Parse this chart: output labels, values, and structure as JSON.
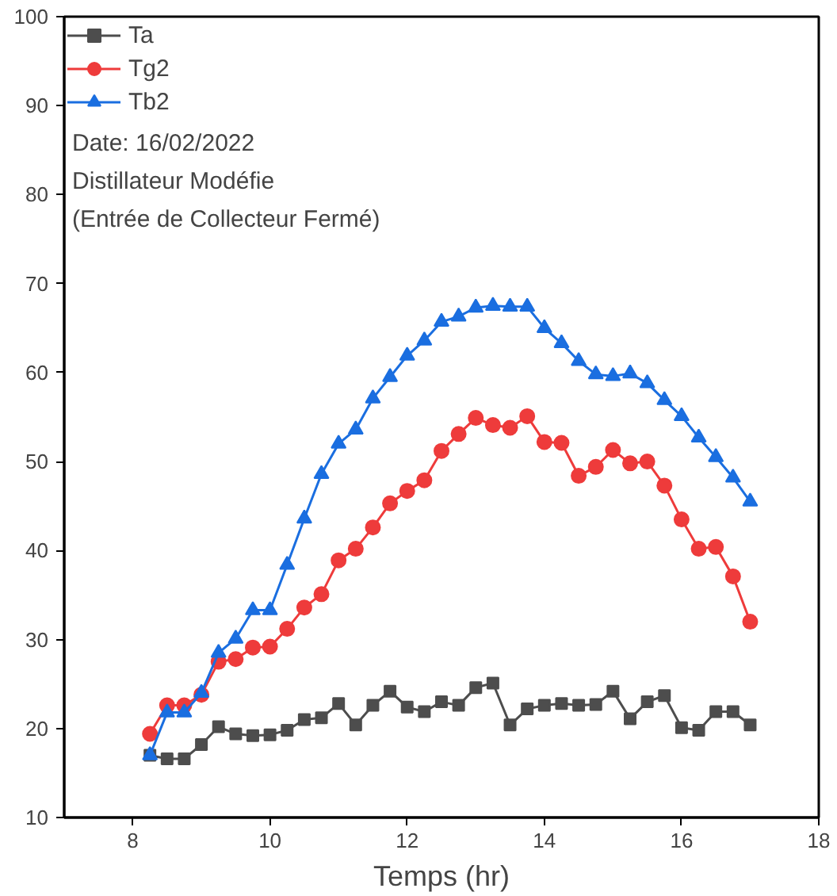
{
  "chart_data": {
    "type": "line",
    "xlabel": "Temps (hr)",
    "x": [
      8.25,
      8.5,
      8.75,
      9,
      9.25,
      9.5,
      9.75,
      10,
      10.25,
      10.5,
      10.75,
      11,
      11.25,
      11.5,
      11.75,
      12,
      12.25,
      12.5,
      12.75,
      13,
      13.25,
      13.5,
      13.75,
      14,
      14.25,
      14.5,
      14.75,
      15,
      15.25,
      15.5,
      15.75,
      16,
      16.25,
      16.5,
      16.75,
      17
    ],
    "series": [
      {
        "name": "Ta",
        "color": "#4d4d4d",
        "marker": "square",
        "values": [
          17,
          16.6,
          16.6,
          18.2,
          20.2,
          19.4,
          19.2,
          19.3,
          19.8,
          21,
          21.2,
          22.8,
          20.4,
          22.6,
          24.2,
          22.4,
          21.9,
          23,
          22.6,
          24.6,
          25.1,
          20.4,
          22.2,
          22.6,
          22.8,
          22.6,
          22.7,
          24.2,
          21.1,
          23,
          23.7,
          20.1,
          19.8,
          21.9,
          21.9,
          20.4
        ]
      },
      {
        "name": "Tg2",
        "color": "#ee3b3b",
        "marker": "circle",
        "values": [
          19.4,
          22.6,
          22.6,
          23.8,
          27.5,
          27.8,
          29.1,
          29.2,
          31.2,
          33.6,
          35.1,
          38.9,
          40.2,
          42.6,
          45.3,
          46.7,
          47.9,
          51.2,
          53.1,
          54.9,
          54.1,
          53.8,
          55.1,
          52.2,
          52.1,
          48.4,
          49.4,
          51.3,
          49.8,
          50,
          47.3,
          43.5,
          40.2,
          40.4,
          37.1,
          32
        ]
      },
      {
        "name": "Tb2",
        "color": "#1a6ee0",
        "marker": "triangle",
        "values": [
          17,
          21.8,
          21.8,
          24,
          28.5,
          30.1,
          33.3,
          33.3,
          38.4,
          43.6,
          48.6,
          52,
          53.6,
          57.1,
          59.5,
          61.9,
          63.6,
          65.7,
          66.3,
          67.3,
          67.5,
          67.4,
          67.4,
          65,
          63.3,
          61.3,
          59.8,
          59.6,
          59.9,
          58.8,
          56.9,
          55.1,
          52.7,
          50.5,
          48.2,
          45.5
        ]
      }
    ],
    "xlim": [
      7,
      18
    ],
    "xticks": [
      8,
      10,
      12,
      14,
      16,
      18
    ],
    "ylim": [
      10,
      100
    ],
    "yticks": [
      10,
      20,
      30,
      40,
      50,
      60,
      70,
      80,
      90,
      100
    ],
    "grid": false,
    "legend": "top left",
    "line_style": "solid",
    "annotations": [
      "Date: 16/02/2022",
      "Distillateur Modéfie",
      "(Entrée de Collecteur Fermé)"
    ]
  }
}
